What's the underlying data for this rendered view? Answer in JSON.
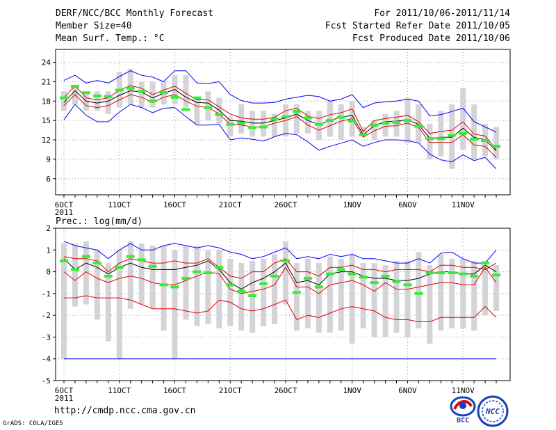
{
  "header": {
    "title": "DERF/NCC/BCC Monthly Forecast",
    "member_size": "Member Size=40",
    "variable": "Mean Surf. Temp.: °C",
    "period": "For 2011/10/06-2011/11/14",
    "start_date": "Fcst Started Refer Date 2011/10/05",
    "produced_date": "Fcst Produced Date 2011/10/06"
  },
  "footer": {
    "url": "http://cmdp.ncc.cma.gov.cn",
    "credit": "GrADS: COLA/IGES",
    "logo_bcc": "BCC",
    "logo_ncc": "NCC"
  },
  "colors": {
    "ensemble_max_min": "#0000ff",
    "spread": "#e00000",
    "mean": "#000000",
    "box": "#d4d4d8",
    "median": "#33ee33",
    "grid": "#999999"
  },
  "chart_data": [
    {
      "type": "line",
      "title": "Mean Surf. Temp.: °C",
      "xlabel": "",
      "ylabel": "°C",
      "ylim": [
        3.5,
        26
      ],
      "yticks": [
        6,
        9,
        12,
        15,
        18,
        21,
        24
      ],
      "xticks": [
        {
          "day": 0,
          "label": "6OCT"
        },
        {
          "day": 5,
          "label": "11OCT"
        },
        {
          "day": 10,
          "label": "16OCT"
        },
        {
          "day": 15,
          "label": "21OCT"
        },
        {
          "day": 20,
          "label": "26OCT"
        },
        {
          "day": 26,
          "label": "1NOV"
        },
        {
          "day": 31,
          "label": "6NOV"
        },
        {
          "day": 36,
          "label": "11NOV"
        }
      ],
      "year_label": "2011",
      "grid": true,
      "series": [
        {
          "name": "max",
          "color": "#0000ff",
          "values": [
            21.2,
            22.0,
            20.8,
            21.2,
            20.8,
            21.8,
            22.7,
            22.0,
            21.7,
            21.0,
            22.7,
            22.7,
            20.8,
            20.7,
            21.0,
            19.0,
            18.1,
            17.7,
            17.7,
            17.8,
            18.3,
            18.6,
            18.9,
            18.7,
            18.0,
            18.3,
            19.0,
            17.0,
            17.7,
            17.9,
            18.0,
            18.3,
            18.0,
            15.7,
            15.9,
            16.4,
            16.9,
            14.8,
            14.0,
            13.2
          ]
        },
        {
          "name": "upper",
          "color": "#e00000",
          "values": [
            18.5,
            20.4,
            18.5,
            18.2,
            18.5,
            19.7,
            20.4,
            20.0,
            19.0,
            19.7,
            20.3,
            19.2,
            18.2,
            18.2,
            17.1,
            16.0,
            15.4,
            15.2,
            15.2,
            15.5,
            16.5,
            16.9,
            15.7,
            15.3,
            15.9,
            16.2,
            16.8,
            13.3,
            15.0,
            15.3,
            15.5,
            15.8,
            14.8,
            13.0,
            13.3,
            13.5,
            14.8,
            12.9,
            12.6,
            10.5
          ]
        },
        {
          "name": "mean",
          "color": "#000000",
          "values": [
            17.8,
            19.6,
            18.0,
            17.7,
            18.0,
            18.9,
            19.6,
            19.4,
            18.5,
            19.2,
            19.8,
            18.6,
            17.8,
            17.7,
            16.6,
            15.0,
            14.9,
            14.6,
            14.6,
            15.0,
            15.4,
            16.0,
            15.0,
            14.4,
            15.0,
            15.5,
            15.8,
            12.8,
            14.2,
            14.8,
            14.9,
            15.1,
            14.4,
            12.2,
            12.4,
            12.4,
            13.8,
            12.4,
            12.0,
            10.3
          ]
        },
        {
          "name": "lower",
          "color": "#e00000",
          "values": [
            17.3,
            19.0,
            17.3,
            17.0,
            17.3,
            18.2,
            19.0,
            18.6,
            17.8,
            18.6,
            19.0,
            18.0,
            17.2,
            17.0,
            16.0,
            14.4,
            14.3,
            14.0,
            14.0,
            14.6,
            15.0,
            15.6,
            14.3,
            13.5,
            14.2,
            14.9,
            15.3,
            12.4,
            13.4,
            14.1,
            14.2,
            14.6,
            13.9,
            11.6,
            11.6,
            11.6,
            12.8,
            11.2,
            11.0,
            9.3
          ]
        },
        {
          "name": "min",
          "color": "#0000ff",
          "values": [
            15.1,
            17.5,
            15.8,
            14.8,
            14.8,
            16.3,
            17.5,
            17.0,
            16.2,
            16.9,
            17.0,
            15.6,
            14.3,
            14.3,
            14.4,
            12.0,
            12.3,
            12.1,
            11.8,
            12.5,
            13.0,
            12.8,
            11.7,
            10.4,
            11.0,
            11.5,
            12.0,
            11.0,
            11.6,
            12.0,
            12.0,
            11.9,
            11.5,
            9.8,
            8.9,
            8.6,
            9.7,
            8.8,
            9.3,
            7.5
          ]
        }
      ],
      "boxes": {
        "top": [
          19.5,
          20.5,
          19.5,
          19.5,
          19.5,
          22.5,
          23.0,
          21.0,
          21.0,
          21.0,
          22.0,
          22.0,
          18.5,
          19.5,
          18.5,
          15.5,
          17.5,
          16.5,
          16.5,
          16.0,
          17.5,
          17.5,
          16.5,
          16.5,
          18.0,
          17.5,
          18.0,
          14.0,
          15.0,
          16.0,
          16.5,
          18.5,
          17.5,
          14.5,
          16.5,
          17.5,
          20.0,
          17.5,
          14.5,
          14.0
        ],
        "bottom": [
          16.5,
          17.5,
          16.5,
          16.5,
          16.0,
          17.0,
          17.5,
          17.0,
          17.0,
          17.5,
          17.5,
          17.0,
          14.5,
          15.0,
          14.5,
          12.5,
          13.0,
          12.5,
          12.5,
          12.5,
          12.5,
          13.0,
          13.0,
          12.0,
          12.5,
          12.0,
          12.5,
          12.5,
          12.0,
          12.5,
          12.5,
          11.5,
          11.5,
          9.0,
          9.5,
          7.5,
          10.5,
          9.0,
          9.5,
          9.0
        ],
        "median": [
          18.5,
          20.3,
          19.3,
          18.8,
          18.7,
          19.7,
          20.0,
          19.5,
          18.0,
          19.3,
          18.6,
          16.7,
          18.5,
          17.0,
          15.9,
          14.4,
          14.6,
          13.9,
          14.0,
          15.2,
          15.6,
          16.4,
          15.4,
          14.4,
          15.0,
          15.5,
          14.9,
          12.8,
          14.3,
          14.6,
          14.7,
          15.0,
          14.1,
          12.2,
          12.2,
          12.7,
          13.0,
          12.1,
          11.9,
          11.0
        ]
      }
    },
    {
      "type": "line",
      "title": "Prec.: log(mm/d)",
      "xlabel": "",
      "ylabel": "log(mm/d)",
      "ylim": [
        -5,
        2
      ],
      "yticks": [
        -5,
        -4,
        -3,
        -2,
        -1,
        0,
        1,
        2
      ],
      "xticks": [
        {
          "day": 0,
          "label": "6OCT"
        },
        {
          "day": 5,
          "label": "11OCT"
        },
        {
          "day": 10,
          "label": "16OCT"
        },
        {
          "day": 15,
          "label": "21OCT"
        },
        {
          "day": 20,
          "label": "26OCT"
        },
        {
          "day": 26,
          "label": "1NOV"
        },
        {
          "day": 31,
          "label": "6NOV"
        },
        {
          "day": 36,
          "label": "11NOV"
        }
      ],
      "year_label": "2011",
      "grid": true,
      "series": [
        {
          "name": "max",
          "color": "#0000ff",
          "values": [
            1.4,
            1.2,
            1.1,
            1.0,
            0.6,
            1.0,
            1.3,
            1.0,
            1.0,
            1.2,
            1.3,
            1.2,
            1.1,
            1.2,
            1.1,
            0.9,
            0.8,
            0.6,
            0.7,
            0.9,
            1.1,
            0.6,
            0.7,
            0.6,
            0.8,
            0.7,
            0.8,
            0.6,
            0.6,
            0.5,
            0.4,
            0.4,
            0.6,
            0.4,
            0.85,
            0.9,
            0.6,
            0.4,
            0.4,
            1.0
          ]
        },
        {
          "name": "upper",
          "color": "#e00000",
          "values": [
            0.7,
            0.6,
            0.6,
            0.5,
            0.0,
            0.4,
            0.6,
            0.5,
            0.4,
            0.4,
            0.5,
            0.4,
            0.4,
            0.6,
            0.2,
            -0.2,
            -0.3,
            0.0,
            0.0,
            0.4,
            0.6,
            0.0,
            0.0,
            -0.2,
            0.2,
            0.2,
            0.3,
            0.1,
            0.1,
            0.0,
            0.1,
            0.1,
            0.1,
            0.0,
            0.3,
            0.3,
            0.2,
            0.2,
            0.1,
            0.4
          ]
        },
        {
          "name": "mean",
          "color": "#000000",
          "values": [
            0.6,
            0.1,
            0.4,
            0.2,
            -0.1,
            0.2,
            0.4,
            0.2,
            0.1,
            0.1,
            0.1,
            0.2,
            0.3,
            0.5,
            0.1,
            -0.5,
            -0.8,
            -0.5,
            -0.3,
            0.0,
            0.4,
            -0.5,
            -0.4,
            -0.6,
            -0.1,
            0.0,
            0.0,
            -0.2,
            -0.3,
            -0.3,
            -0.4,
            -0.4,
            -0.3,
            -0.1,
            0.0,
            0.0,
            -0.1,
            -0.1,
            0.3,
            0.0
          ]
        },
        {
          "name": "lower",
          "color": "#e00000",
          "values": [
            0.0,
            -0.4,
            0.0,
            -0.3,
            -0.5,
            -0.3,
            -0.2,
            -0.3,
            -0.5,
            -0.6,
            -0.6,
            -0.4,
            -0.2,
            0.0,
            -0.1,
            -0.8,
            -1.0,
            -0.9,
            -0.8,
            -0.6,
            0.2,
            -0.7,
            -0.7,
            -1.0,
            -0.6,
            -0.5,
            -0.4,
            -0.6,
            -0.9,
            -0.5,
            -0.8,
            -0.8,
            -0.7,
            -0.6,
            -0.5,
            -0.5,
            -0.6,
            -0.6,
            0.2,
            -0.5
          ]
        },
        {
          "name": "min",
          "color": "#e00000",
          "values": [
            -1.2,
            -1.2,
            -1.1,
            -1.2,
            -1.2,
            -1.2,
            -1.3,
            -1.5,
            -1.7,
            -1.7,
            -1.7,
            -1.8,
            -1.9,
            -1.8,
            -1.3,
            -1.4,
            -1.7,
            -1.8,
            -1.7,
            -1.5,
            -1.3,
            -2.2,
            -2.0,
            -2.1,
            -1.9,
            -1.7,
            -1.6,
            -1.7,
            -1.8,
            -2.1,
            -2.2,
            -2.2,
            -2.3,
            -2.3,
            -2.1,
            -2.1,
            -2.1,
            -2.1,
            -1.6,
            -2.1
          ]
        },
        {
          "name": "floor",
          "color": "#0000ff",
          "values": [
            -4.0,
            -4.0,
            -4.0,
            -4.0,
            -4.0,
            -4.0,
            -4.0,
            -4.0,
            -4.0,
            -4.0,
            -4.0,
            -4.0,
            -4.0,
            -4.0,
            -4.0,
            -4.0,
            -4.0,
            -4.0,
            -4.0,
            -4.0,
            -4.0,
            -4.0,
            -4.0,
            -4.0,
            -4.0,
            -4.0,
            -4.0,
            -4.0,
            -4.0,
            -4.0,
            -4.0,
            -4.0,
            -4.0,
            -4.0,
            -4.0,
            -4.0,
            -4.0,
            -4.0,
            -4.0,
            -4.0
          ]
        }
      ],
      "boxes": {
        "top": [
          1.3,
          1.3,
          1.4,
          1.0,
          0.4,
          1.0,
          1.4,
          1.3,
          1.2,
          1.2,
          1.0,
          1.2,
          1.2,
          1.0,
          1.0,
          0.6,
          0.4,
          0.5,
          0.6,
          0.8,
          1.4,
          0.4,
          0.6,
          0.4,
          0.7,
          0.6,
          0.8,
          0.4,
          0.4,
          0.3,
          0.5,
          0.5,
          0.9,
          0.3,
          0.8,
          0.6,
          0.6,
          0.5,
          0.5,
          0.3
        ],
        "bottom": [
          -4.0,
          -1.6,
          -1.5,
          -2.2,
          -3.2,
          -4.0,
          -1.7,
          -1.5,
          -1.7,
          -2.7,
          -4.0,
          -2.2,
          -2.5,
          -2.4,
          -2.6,
          -2.5,
          -2.7,
          -2.8,
          -2.5,
          -2.4,
          -1.5,
          -2.7,
          -2.6,
          -2.8,
          -2.8,
          -2.7,
          -3.3,
          -2.6,
          -3.0,
          -3.0,
          -2.8,
          -3.0,
          -2.6,
          -3.3,
          -2.7,
          -2.6,
          -2.6,
          -2.7,
          -2.0,
          -1.8
        ],
        "median": [
          0.5,
          0.1,
          0.7,
          0.4,
          -0.2,
          0.2,
          0.7,
          0.55,
          0.25,
          -0.6,
          -0.7,
          -0.3,
          0.0,
          -0.05,
          0.2,
          -0.6,
          -0.9,
          -1.1,
          -0.55,
          -0.2,
          0.5,
          -0.95,
          -0.3,
          -0.7,
          -0.1,
          0.1,
          -0.1,
          -0.25,
          -0.5,
          -0.2,
          -0.45,
          -0.6,
          -1.0,
          -0.05,
          -0.05,
          -0.05,
          -0.1,
          -0.2,
          0.4,
          -0.15
        ]
      }
    }
  ]
}
